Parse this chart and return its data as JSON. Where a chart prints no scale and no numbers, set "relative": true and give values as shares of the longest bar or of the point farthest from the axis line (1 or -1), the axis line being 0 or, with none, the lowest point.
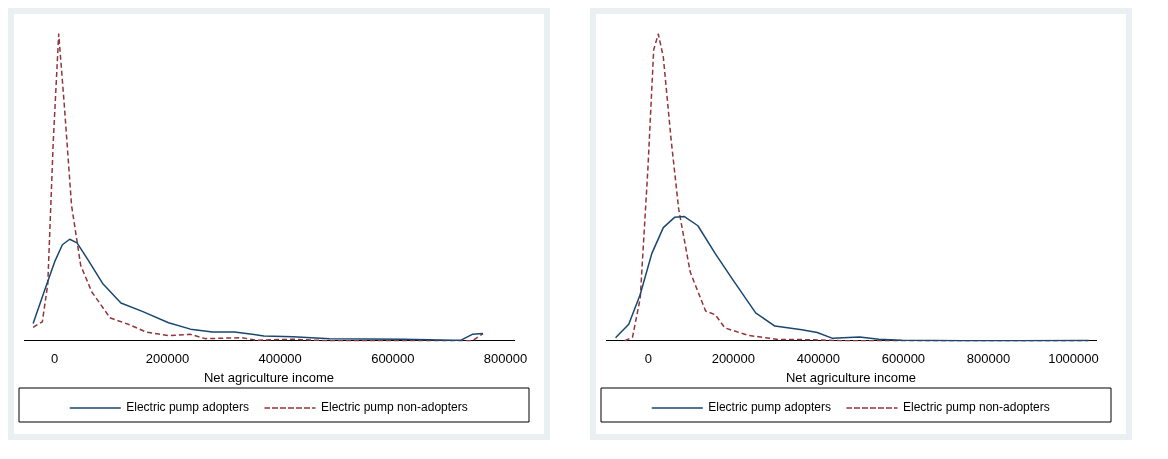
{
  "chart_data": [
    {
      "type": "line",
      "xlabel": "Net agriculture income",
      "relative": true,
      "xlim": [
        -54500,
        815000
      ],
      "xticks": [
        0,
        200000,
        400000,
        600000,
        800000
      ],
      "legend": "bottom",
      "series": [
        {
          "name": "Electric pump adopters",
          "color": "#1a476f",
          "line_style": "solid",
          "x": [
            -38300,
            -18800,
            0,
            13600,
            26600,
            39600,
            59100,
            85000,
            117500,
            156500,
            202000,
            241000,
            280000,
            319000,
            371000,
            423000,
            488000,
            618000,
            708000,
            721000,
            741000,
            760000
          ],
          "values": [
            0.056,
            0.16,
            0.258,
            0.313,
            0.331,
            0.319,
            0.264,
            0.187,
            0.123,
            0.095,
            0.059,
            0.038,
            0.029,
            0.029,
            0.016,
            0.013,
            0.007,
            0.005,
            0.002,
            0.002,
            0.021,
            0.024
          ]
        },
        {
          "name": "Electric pump non-adopters",
          "color": "#90353b",
          "line_style": "dashed",
          "x": [
            -38300,
            -22000,
            -12300,
            -2600,
            7100,
            16900,
            29900,
            46100,
            65600,
            98000,
            130500,
            163000,
            202000,
            241000,
            267000,
            332000,
            358000,
            423000,
            488000,
            618000,
            741000,
            760000
          ],
          "values": [
            0.044,
            0.062,
            0.185,
            0.649,
            1,
            0.771,
            0.441,
            0.246,
            0.16,
            0.075,
            0.054,
            0.028,
            0.017,
            0.021,
            0.007,
            0.01,
            0.002,
            0.005,
            0,
            0,
            0,
            0.023
          ]
        }
      ]
    },
    {
      "type": "line",
      "xlabel": "Net agriculture income",
      "relative": true,
      "xlim": [
        -99500,
        1053000
      ],
      "xticks": [
        0,
        200000,
        400000,
        600000,
        800000,
        1000000
      ],
      "legend": "bottom",
      "series": [
        {
          "name": "Electric pump adopters",
          "color": "#1a476f",
          "line_style": "solid",
          "x": [
            -77000,
            -46000,
            -19000,
            8100,
            35300,
            62400,
            85000,
            116700,
            157500,
            198200,
            252500,
            297700,
            361000,
            397300,
            433500,
            496800,
            542000,
            596400,
            741200,
            1035300
          ],
          "values": [
            0.01,
            0.054,
            0.151,
            0.284,
            0.369,
            0.403,
            0.405,
            0.375,
            0.284,
            0.2,
            0.091,
            0.048,
            0.036,
            0.027,
            0.008,
            0.012,
            0.005,
            0.002,
            0,
            0.001
          ]
        },
        {
          "name": "Electric pump non-adopters",
          "color": "#90353b",
          "line_style": "dashed",
          "x": [
            -55200,
            -37100,
            -19000,
            -900,
            12700,
            23500,
            35300,
            53400,
            71500,
            98600,
            134800,
            157500,
            180100,
            234400,
            306800,
            361000,
            469700,
            1035300
          ],
          "values": [
            0,
            0.012,
            0.139,
            0.562,
            0.949,
            1,
            0.925,
            0.659,
            0.429,
            0.224,
            0.097,
            0.085,
            0.042,
            0.018,
            0.004,
            0.004,
            0,
            0
          ]
        }
      ]
    }
  ]
}
